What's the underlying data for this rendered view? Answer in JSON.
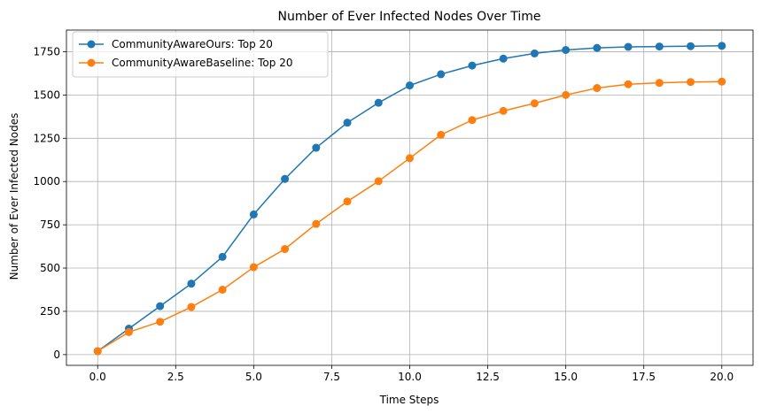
{
  "chart_data": {
    "type": "line",
    "title": "Number of Ever Infected Nodes Over Time",
    "xlabel": "Time Steps",
    "ylabel": "Number of Ever Infected Nodes",
    "xlim": [
      -1.0,
      21.0
    ],
    "ylim": [
      -62,
      1875
    ],
    "xticks": [
      0.0,
      2.5,
      5.0,
      7.5,
      10.0,
      12.5,
      15.0,
      17.5,
      20.0
    ],
    "xtick_labels": [
      "0.0",
      "2.5",
      "5.0",
      "7.5",
      "10.0",
      "12.5",
      "15.0",
      "17.5",
      "20.0"
    ],
    "yticks": [
      0,
      250,
      500,
      750,
      1000,
      1250,
      1500,
      1750
    ],
    "ytick_labels": [
      "0",
      "250",
      "500",
      "750",
      "1000",
      "1250",
      "1500",
      "1750"
    ],
    "grid": true,
    "legend_position": "top-left",
    "x": [
      0,
      1,
      2,
      3,
      4,
      5,
      6,
      7,
      8,
      9,
      10,
      11,
      12,
      13,
      14,
      15,
      16,
      17,
      18,
      19,
      20
    ],
    "series": [
      {
        "name": "CommunityAwareOurs: Top 20",
        "color": "#1f77b4",
        "values": [
          20,
          150,
          280,
          410,
          565,
          810,
          1015,
          1195,
          1340,
          1455,
          1555,
          1620,
          1670,
          1710,
          1740,
          1760,
          1772,
          1778,
          1780,
          1782,
          1784
        ]
      },
      {
        "name": "CommunityAwareBaseline: Top 20",
        "color": "#ff7f0e",
        "values": [
          20,
          130,
          190,
          275,
          375,
          505,
          610,
          755,
          885,
          1002,
          1135,
          1270,
          1355,
          1408,
          1452,
          1500,
          1540,
          1562,
          1570,
          1575,
          1577
        ]
      }
    ]
  }
}
